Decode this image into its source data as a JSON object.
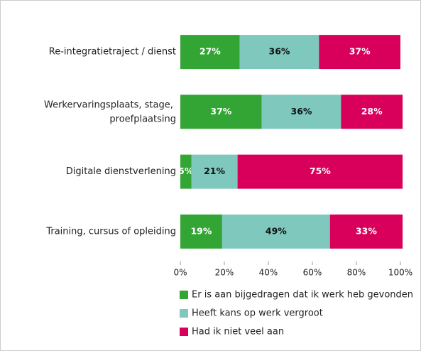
{
  "chart_data": {
    "type": "stacked-bar-horizontal",
    "categories": [
      "Re-integratietraject / dienst",
      "Werkervaringsplaats, stage, proefplaatsing",
      "Digitale dienstverlening",
      "Training, cursus of opleiding"
    ],
    "series": [
      {
        "name": "Er is aan bijgedragen dat ik werk heb gevonden",
        "color": "#33a534",
        "values": [
          27,
          37,
          5,
          19
        ],
        "value_labels": [
          "27%",
          "37%",
          "5%",
          "19%"
        ]
      },
      {
        "name": "Heeft kans op werk vergroot",
        "color": "#7ec8bd",
        "values": [
          36,
          36,
          21,
          49
        ],
        "value_labels": [
          "36%",
          "36%",
          "21%",
          "49%"
        ]
      },
      {
        "name": "Had ik niet veel aan",
        "color": "#d8005a",
        "values": [
          37,
          28,
          75,
          33
        ],
        "value_labels": [
          "37%",
          "28%",
          "75%",
          "33%"
        ]
      }
    ],
    "xlim": [
      0,
      100
    ],
    "xticks": [
      {
        "value": 0,
        "label": "0%"
      },
      {
        "value": 20,
        "label": "20%"
      },
      {
        "value": 40,
        "label": "40%"
      },
      {
        "value": 60,
        "label": "60%"
      },
      {
        "value": 80,
        "label": "80%"
      },
      {
        "value": 100,
        "label": "100%"
      }
    ],
    "legend": "bottom"
  }
}
